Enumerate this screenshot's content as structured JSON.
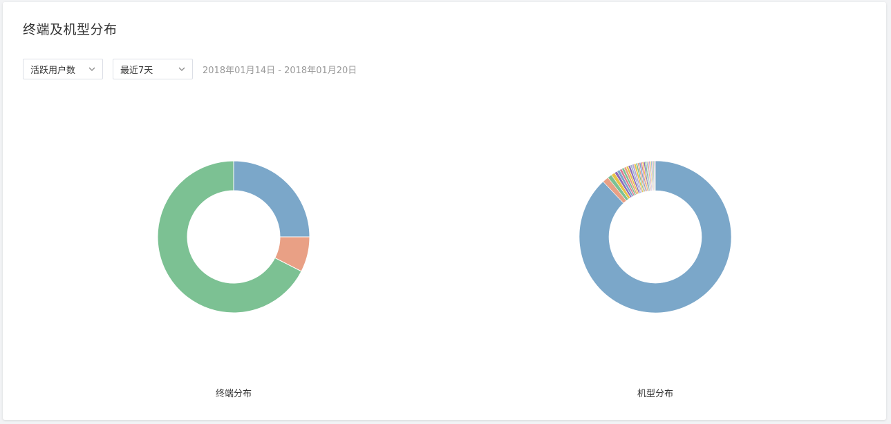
{
  "header": {
    "title": "终端及机型分布"
  },
  "filters": {
    "metric": "活跃用户数",
    "range": "最近7天",
    "date_range": "2018年01月14日 - 2018年01月20日"
  },
  "colors": {
    "blue": "#7ba7c9",
    "salmon": "#e9a085",
    "green": "#7cc193"
  },
  "chart_data": [
    {
      "type": "pie",
      "title": "终端分布",
      "donut": true,
      "legend": "none",
      "slices": [
        {
          "value": 25,
          "color": "#7ba7c9"
        },
        {
          "value": 7.5,
          "color": "#e9a085"
        },
        {
          "value": 67.5,
          "color": "#7cc193"
        }
      ]
    },
    {
      "type": "pie",
      "title": "机型分布",
      "donut": true,
      "legend": "none",
      "slices": [
        {
          "value": 87.0,
          "color": "#7ba7c9"
        },
        {
          "value": 1.3,
          "color": "#e9a085"
        },
        {
          "value": 0.9,
          "color": "#7cc193"
        },
        {
          "value": 0.8,
          "color": "#e8c34a"
        },
        {
          "value": 0.6,
          "color": "#8e6bb8"
        },
        {
          "value": 0.6,
          "color": "#7ba7c9"
        },
        {
          "value": 0.5,
          "color": "#d97b93"
        },
        {
          "value": 0.5,
          "color": "#7cc193"
        },
        {
          "value": 0.5,
          "color": "#e9a085"
        },
        {
          "value": 0.45,
          "color": "#e8c34a"
        },
        {
          "value": 0.45,
          "color": "#8e6bb8"
        },
        {
          "value": 0.4,
          "color": "#9fb6d4"
        },
        {
          "value": 0.4,
          "color": "#b9a5d6"
        },
        {
          "value": 0.4,
          "color": "#e8c34a"
        },
        {
          "value": 0.35,
          "color": "#7cc193"
        },
        {
          "value": 0.35,
          "color": "#e9a085"
        },
        {
          "value": 0.35,
          "color": "#7ba7c9"
        },
        {
          "value": 0.3,
          "color": "#d97b93"
        },
        {
          "value": 0.3,
          "color": "#e8c34a"
        },
        {
          "value": 0.3,
          "color": "#8e6bb8"
        },
        {
          "value": 0.3,
          "color": "#7cc193"
        },
        {
          "value": 0.25,
          "color": "#9fb6d4"
        },
        {
          "value": 0.25,
          "color": "#e9a085"
        },
        {
          "value": 0.25,
          "color": "#b9a5d6"
        },
        {
          "value": 0.2,
          "color": "#e8c34a"
        },
        {
          "value": 0.2,
          "color": "#7ba7c9"
        },
        {
          "value": 0.2,
          "color": "#d97b93"
        },
        {
          "value": 0.2,
          "color": "#7cc193"
        },
        {
          "value": 0.15,
          "color": "#8e6bb8"
        },
        {
          "value": 0.15,
          "color": "#e9a085"
        }
      ]
    }
  ]
}
